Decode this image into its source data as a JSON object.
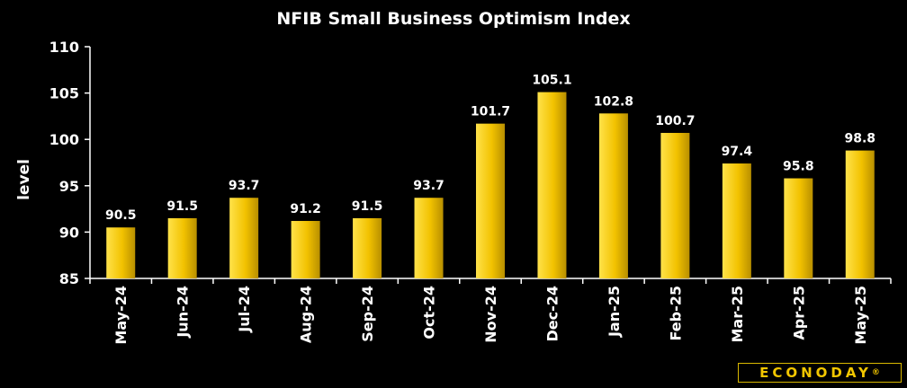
{
  "chart_data": {
    "type": "bar",
    "title": "NFIB Small Business Optimism Index",
    "xlabel": "",
    "ylabel": "level",
    "ylim": [
      85,
      110
    ],
    "yticks": [
      85,
      90,
      95,
      100,
      105,
      110
    ],
    "categories": [
      "May-24",
      "Jun-24",
      "Jul-24",
      "Aug-24",
      "Sep-24",
      "Oct-24",
      "Nov-24",
      "Dec-24",
      "Jan-25",
      "Feb-25",
      "Mar-25",
      "Apr-25",
      "May-25"
    ],
    "values": [
      90.5,
      91.5,
      93.7,
      91.2,
      91.5,
      93.7,
      101.7,
      105.1,
      102.8,
      100.7,
      97.4,
      95.8,
      98.8
    ],
    "value_labels": [
      "90.5",
      "91.5",
      "93.7",
      "91.2",
      "91.5",
      "93.7",
      "101.7",
      "105.1",
      "102.8",
      "100.7",
      "97.4",
      "95.8",
      "98.8"
    ],
    "grid": false,
    "bar_color": "#f2c200"
  },
  "brand": {
    "text": "ECONODAY",
    "mark": "®",
    "color": "#f2c600"
  }
}
